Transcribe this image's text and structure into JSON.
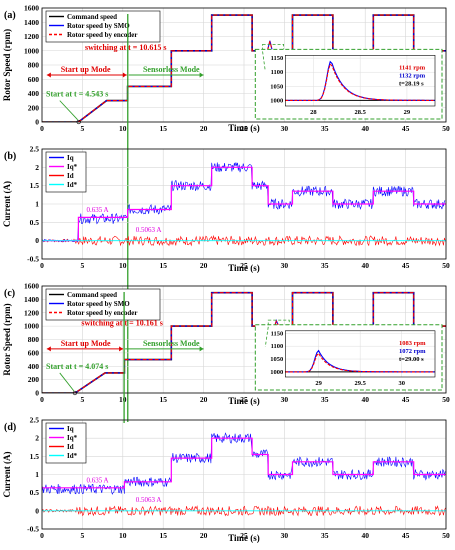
{
  "chart_data": [
    {
      "type": "line",
      "panel_label": "(a)",
      "xlabel": "Time (s)",
      "ylabel": "Rotor Speed (rpm)",
      "xlim": [
        0,
        50
      ],
      "ylim": [
        0,
        1600
      ],
      "xticks": [
        0,
        5,
        10,
        15,
        20,
        25,
        30,
        35,
        40,
        45,
        50
      ],
      "yticks": [
        0,
        200,
        400,
        600,
        800,
        1000,
        1200,
        1400,
        1600
      ],
      "grid": true,
      "legend_position": "top-left",
      "colors": {
        "command": "#000000",
        "smo": "#0000ff",
        "encoder": "#ff0000"
      },
      "series": [
        {
          "name": "Command speed",
          "style": "solid",
          "points": [
            [
              0,
              0
            ],
            [
              4.5,
              0
            ],
            [
              8,
              300
            ],
            [
              10.6,
              300
            ],
            [
              10.6,
              500
            ],
            [
              16,
              500
            ],
            [
              16,
              1000
            ],
            [
              21,
              1000
            ],
            [
              21,
              1500
            ],
            [
              26,
              1500
            ],
            [
              26,
              1000
            ],
            [
              31,
              1000
            ],
            [
              31,
              1500
            ],
            [
              36,
              1500
            ],
            [
              36,
              1000
            ],
            [
              41,
              1000
            ],
            [
              41,
              1500
            ],
            [
              46,
              1500
            ],
            [
              46,
              1000
            ],
            [
              50,
              1000
            ]
          ]
        },
        {
          "name": "Rotor speed by SMO",
          "style": "solid",
          "points": [
            [
              0,
              0
            ],
            [
              4.5,
              0
            ],
            [
              8,
              300
            ],
            [
              10.6,
              300
            ],
            [
              10.6,
              500
            ],
            [
              16,
              500
            ],
            [
              16,
              1000
            ],
            [
              21,
              1000
            ],
            [
              21,
              1500
            ],
            [
              26,
              1500
            ],
            [
              26,
              1000
            ],
            [
              27.9,
              1000
            ],
            [
              28.2,
              1141
            ],
            [
              28.5,
              1000
            ],
            [
              31,
              1000
            ],
            [
              31,
              1500
            ],
            [
              36,
              1500
            ],
            [
              36,
              1000
            ],
            [
              41,
              1000
            ],
            [
              41,
              1500
            ],
            [
              46,
              1500
            ],
            [
              46,
              1000
            ],
            [
              50,
              1000
            ]
          ]
        },
        {
          "name": "Rotor speed by encoder",
          "style": "dashed",
          "points": [
            [
              0,
              0
            ],
            [
              4.5,
              0
            ],
            [
              8,
              300
            ],
            [
              10.6,
              300
            ],
            [
              10.6,
              500
            ],
            [
              16,
              500
            ],
            [
              16,
              1000
            ],
            [
              21,
              1000
            ],
            [
              21,
              1500
            ],
            [
              26,
              1500
            ],
            [
              26,
              1000
            ],
            [
              27.9,
              1000
            ],
            [
              28.2,
              1132
            ],
            [
              28.5,
              1000
            ],
            [
              31,
              1000
            ],
            [
              31,
              1500
            ],
            [
              36,
              1500
            ],
            [
              36,
              1000
            ],
            [
              41,
              1000
            ],
            [
              41,
              1500
            ],
            [
              46,
              1500
            ],
            [
              46,
              1000
            ],
            [
              50,
              1000
            ]
          ]
        }
      ],
      "switch_time": 10.615,
      "start_time": 4.543,
      "annotations": {
        "switching": "switching at t = 10.615 s",
        "startup": "Start up Mode",
        "sensorless": "Sensorless Mode",
        "start": "Start at t = 4.543 s"
      },
      "inset": {
        "xlim": [
          27.7,
          29.3
        ],
        "ylim": [
          980,
          1160
        ],
        "xticks": [
          28,
          28.5,
          29
        ],
        "yticks": [
          1000,
          1050,
          1100,
          1150
        ],
        "peak_smo": "1141 rpm",
        "peak_encoder": "1132 rpm",
        "peak_time": "t=28.19 s",
        "peak_t": 28.19,
        "peak_values": [
          1141,
          1132
        ]
      }
    },
    {
      "type": "line",
      "panel_label": "(b)",
      "xlabel": "Time (s)",
      "ylabel": "Current (A)",
      "xlim": [
        0,
        50
      ],
      "ylim": [
        -0.5,
        2.5
      ],
      "xticks": [
        0,
        5,
        10,
        15,
        20,
        25,
        30,
        35,
        40,
        45,
        50
      ],
      "yticks": [
        -0.5,
        0,
        0.5,
        1,
        1.5,
        2,
        2.5
      ],
      "grid": true,
      "legend_position": "top-left",
      "colors": {
        "iq": "#0000ff",
        "iq_ref": "#ff00ff",
        "id": "#ff0000",
        "id_ref": "#00ffff"
      },
      "series": [
        {
          "name": "Iq",
          "segments": [
            [
              0,
              4.5,
              0.0
            ],
            [
              4.5,
              10.6,
              0.6
            ],
            [
              10.6,
              16,
              0.85
            ],
            [
              16,
              21,
              1.5
            ],
            [
              21,
              26,
              2.0
            ],
            [
              26,
              28,
              1.5
            ],
            [
              28,
              31,
              1.0
            ],
            [
              31,
              36,
              1.35
            ],
            [
              36,
              41,
              1.0
            ],
            [
              41,
              46,
              1.35
            ],
            [
              46,
              50,
              1.0
            ]
          ]
        },
        {
          "name": "Iq*",
          "segments": [
            [
              0,
              4.5,
              0.0
            ],
            [
              4.5,
              10.6,
              0.635
            ],
            [
              10.6,
              16,
              0.85
            ],
            [
              16,
              21,
              1.5
            ],
            [
              21,
              26,
              2.0
            ],
            [
              26,
              28,
              1.5
            ],
            [
              28,
              31,
              1.0
            ],
            [
              31,
              36,
              1.35
            ],
            [
              36,
              41,
              1.0
            ],
            [
              41,
              46,
              1.35
            ],
            [
              46,
              50,
              1.0
            ]
          ]
        },
        {
          "name": "Id",
          "value": 0.0
        },
        {
          "name": "Id*",
          "value": 0.0
        }
      ],
      "annotations": {
        "iq_start": "0.635 A",
        "iq_switch": "0.5063 A"
      }
    },
    {
      "type": "line",
      "panel_label": "(c)",
      "xlabel": "Time (s)",
      "ylabel": "Rotor Speed (rpm)",
      "xlim": [
        0,
        50
      ],
      "ylim": [
        0,
        1600
      ],
      "xticks": [
        0,
        5,
        10,
        15,
        20,
        25,
        30,
        35,
        40,
        45,
        50
      ],
      "yticks": [
        0,
        200,
        400,
        600,
        800,
        1000,
        1200,
        1400,
        1600
      ],
      "grid": true,
      "legend_position": "top-left",
      "colors": {
        "command": "#000000",
        "smo": "#0000ff",
        "encoder": "#ff0000"
      },
      "series": [
        {
          "name": "Command speed",
          "style": "solid",
          "points": [
            [
              0,
              0
            ],
            [
              4.1,
              0
            ],
            [
              7.8,
              300
            ],
            [
              10.2,
              300
            ],
            [
              10.2,
              500
            ],
            [
              16,
              500
            ],
            [
              16,
              1000
            ],
            [
              21,
              1000
            ],
            [
              21,
              1500
            ],
            [
              26,
              1500
            ],
            [
              26,
              1000
            ],
            [
              31,
              1000
            ],
            [
              31,
              1500
            ],
            [
              36,
              1500
            ],
            [
              36,
              1000
            ],
            [
              41,
              1000
            ],
            [
              41,
              1500
            ],
            [
              46,
              1500
            ],
            [
              46,
              1000
            ],
            [
              50,
              1000
            ]
          ]
        },
        {
          "name": "Rotor speed by SMO",
          "style": "solid",
          "points": [
            [
              0,
              0
            ],
            [
              4.1,
              0
            ],
            [
              7.8,
              300
            ],
            [
              10.2,
              300
            ],
            [
              10.2,
              500
            ],
            [
              16,
              500
            ],
            [
              16,
              1000
            ],
            [
              21,
              1000
            ],
            [
              21,
              1500
            ],
            [
              26,
              1500
            ],
            [
              26,
              1000
            ],
            [
              28.8,
              1000
            ],
            [
              29.0,
              1083
            ],
            [
              29.3,
              1000
            ],
            [
              31,
              1000
            ],
            [
              31,
              1500
            ],
            [
              36,
              1500
            ],
            [
              36,
              1000
            ],
            [
              41,
              1000
            ],
            [
              41,
              1500
            ],
            [
              46,
              1500
            ],
            [
              46,
              1000
            ],
            [
              50,
              1000
            ]
          ]
        },
        {
          "name": "Rotor speed by encoder",
          "style": "dashed",
          "points": [
            [
              0,
              0
            ],
            [
              4.1,
              0
            ],
            [
              7.8,
              300
            ],
            [
              10.2,
              300
            ],
            [
              10.2,
              500
            ],
            [
              16,
              500
            ],
            [
              16,
              1000
            ],
            [
              21,
              1000
            ],
            [
              21,
              1500
            ],
            [
              26,
              1500
            ],
            [
              26,
              1000
            ],
            [
              28.8,
              1000
            ],
            [
              29.0,
              1072
            ],
            [
              29.3,
              1000
            ],
            [
              31,
              1000
            ],
            [
              31,
              1500
            ],
            [
              36,
              1500
            ],
            [
              36,
              1000
            ],
            [
              41,
              1000
            ],
            [
              41,
              1500
            ],
            [
              46,
              1500
            ],
            [
              46,
              1000
            ],
            [
              50,
              1000
            ]
          ]
        }
      ],
      "switch_time": 10.161,
      "start_time": 4.074,
      "annotations": {
        "switching": "switching at t = 10.161 s",
        "startup": "Start up Mode",
        "sensorless": "Sensorless Mode",
        "start": "Start at t = 4.074 s"
      },
      "inset": {
        "xlim": [
          28.6,
          30.4
        ],
        "ylim": [
          980,
          1160
        ],
        "xticks": [
          29,
          29.5,
          30
        ],
        "yticks": [
          1000,
          1050,
          1100,
          1150
        ],
        "peak_smo": "1083 rpm",
        "peak_encoder": "1072 rpm",
        "peak_time": "t=29.00 s",
        "peak_t": 29.0,
        "peak_values": [
          1083,
          1072
        ]
      }
    },
    {
      "type": "line",
      "panel_label": "(d)",
      "xlabel": "Time (s)",
      "ylabel": "Current (A)",
      "xlim": [
        0,
        50
      ],
      "ylim": [
        -0.5,
        2.5
      ],
      "xticks": [
        0,
        5,
        10,
        15,
        20,
        25,
        30,
        35,
        40,
        45,
        50
      ],
      "yticks": [
        -0.5,
        0,
        0.5,
        1,
        1.5,
        2,
        2.5
      ],
      "grid": true,
      "legend_position": "top-left",
      "colors": {
        "iq": "#0000ff",
        "iq_ref": "#ff00ff",
        "id": "#ff0000",
        "id_ref": "#00ffff"
      },
      "series": [
        {
          "name": "Iq",
          "segments": [
            [
              0,
              4.1,
              0.6
            ],
            [
              4.1,
              10.2,
              0.6
            ],
            [
              10.2,
              16,
              0.8
            ],
            [
              16,
              21,
              1.45
            ],
            [
              21,
              26,
              2.0
            ],
            [
              26,
              28,
              1.55
            ],
            [
              28,
              31,
              1.0
            ],
            [
              31,
              36,
              1.35
            ],
            [
              36,
              41,
              1.0
            ],
            [
              41,
              46,
              1.35
            ],
            [
              46,
              50,
              1.0
            ]
          ]
        },
        {
          "name": "Iq*",
          "segments": [
            [
              0,
              4.1,
              0.635
            ],
            [
              4.1,
              10.2,
              0.635
            ],
            [
              10.2,
              16,
              0.8
            ],
            [
              16,
              21,
              1.45
            ],
            [
              21,
              26,
              2.0
            ],
            [
              26,
              28,
              1.55
            ],
            [
              28,
              31,
              1.0
            ],
            [
              31,
              36,
              1.35
            ],
            [
              36,
              41,
              1.0
            ],
            [
              41,
              46,
              1.35
            ],
            [
              46,
              50,
              1.0
            ]
          ]
        },
        {
          "name": "Id",
          "value": 0.0
        },
        {
          "name": "Id*",
          "value": 0.0
        }
      ],
      "annotations": {
        "iq_start": "0.635 A",
        "iq_switch": "0.5063 A"
      }
    }
  ]
}
